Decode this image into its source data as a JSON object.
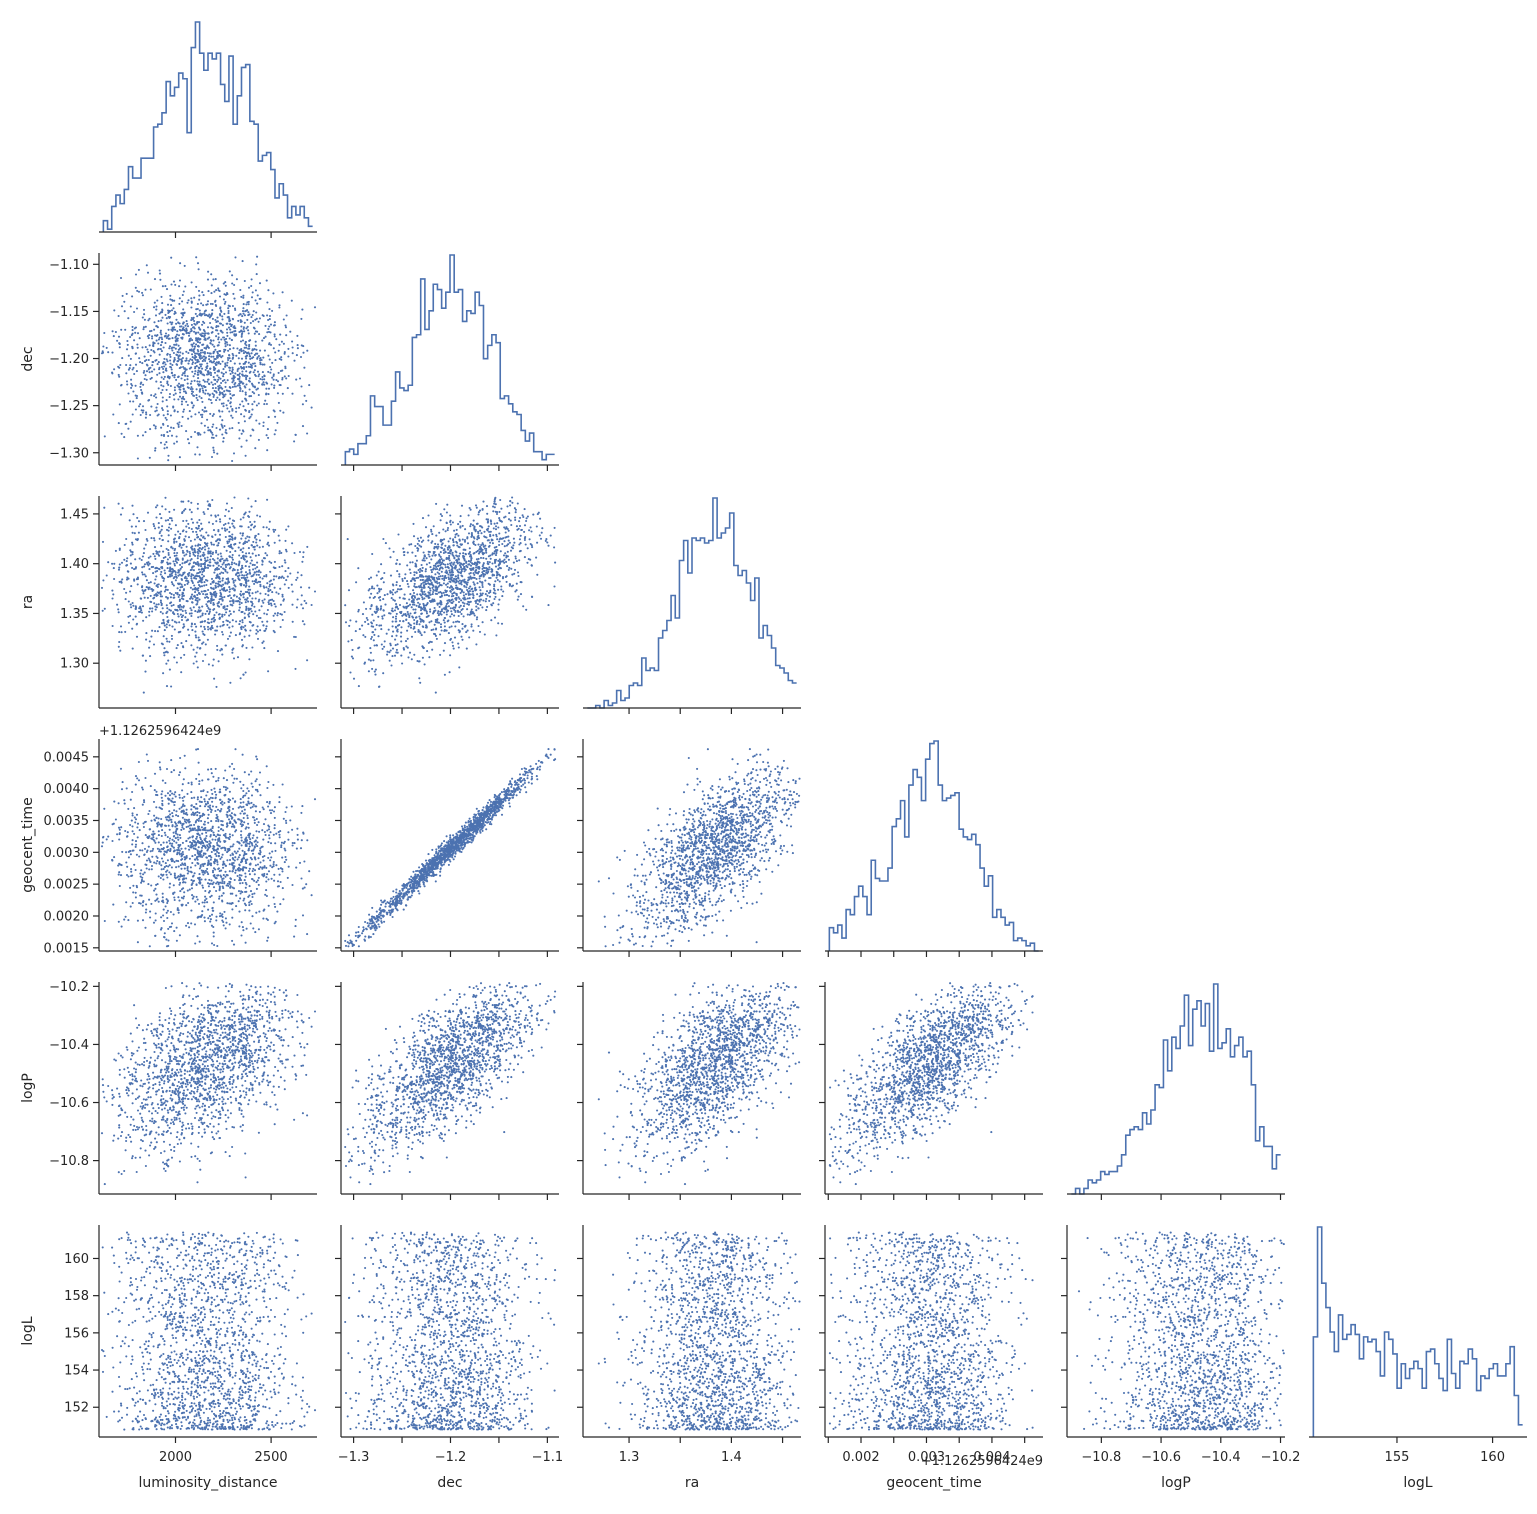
{
  "chart_data": {
    "type": "corner",
    "description_kind": "pairwise scatter matrix (lower triangle) with 1D step histograms on the diagonal",
    "colors": {
      "marks": "#4c72b0",
      "axes": "#262626"
    },
    "parameters": [
      {
        "name": "luminosity_distance",
        "label": "luminosity_distance",
        "range": [
          1600,
          2740
        ],
        "ticks": [
          2000,
          2500
        ],
        "tick_labels": [
          "2000",
          "2500"
        ],
        "mean": 2160,
        "std": 240
      },
      {
        "name": "dec",
        "label": "dec",
        "range": [
          -1.313,
          -1.088
        ],
        "ticks": [
          -1.3,
          -1.25,
          -1.2,
          -1.15,
          -1.1
        ],
        "tick_labels_x": [
          "−1.3",
          "",
          "−1.2",
          "",
          "−1.1"
        ],
        "tick_labels_y": [
          "−1.30",
          "−1.25",
          "−1.20",
          "−1.15",
          "−1.10"
        ],
        "mean": -1.2,
        "std": 0.045
      },
      {
        "name": "ra",
        "label": "ra",
        "range": [
          1.255,
          1.468
        ],
        "ticks": [
          1.3,
          1.35,
          1.4,
          1.45
        ],
        "tick_labels_x": [
          "1.3",
          "",
          "1.4",
          ""
        ],
        "tick_labels_y": [
          "1.30",
          "1.35",
          "1.40",
          "1.45"
        ],
        "mean": 1.383,
        "std": 0.04
      },
      {
        "name": "geocent_time",
        "label": "geocent_time",
        "range": [
          0.00145,
          0.00478
        ],
        "ticks": [
          0.0015,
          0.002,
          0.0025,
          0.003,
          0.0035,
          0.004,
          0.0045
        ],
        "tick_labels_x": [
          "",
          "0.002",
          "",
          "0.003",
          "",
          "0.004",
          ""
        ],
        "tick_labels_y": [
          "0.0015",
          "0.0020",
          "0.0025",
          "0.0030",
          "0.0035",
          "0.0040",
          "0.0045"
        ],
        "offset_text": "+1.126259642​4e9",
        "mean": 0.00305,
        "std": 0.00062
      },
      {
        "name": "logP",
        "label": "logP",
        "range": [
          -10.915,
          -10.185
        ],
        "ticks": [
          -10.8,
          -10.6,
          -10.4,
          -10.2
        ],
        "tick_labels": [
          "−10.8",
          "−10.6",
          "−10.4",
          "−10.2"
        ],
        "mean": -10.47,
        "std": 0.15
      },
      {
        "name": "logL",
        "label": "logL",
        "range": [
          150.4,
          161.8
        ],
        "ticks": [
          152,
          154,
          156,
          158,
          160
        ],
        "tick_labels_y": [
          "152",
          "154",
          "156",
          "158",
          "160"
        ],
        "ticks_x": [
          155,
          160
        ],
        "tick_labels_x": [
          "155",
          "160"
        ],
        "min": 150.8,
        "max": 161.4
      }
    ],
    "offset_label_texts": {
      "top": "+1.1262596424e9",
      "bottom": "+1.1262596424e9"
    },
    "sample_count": 1800,
    "correlations": {
      "dec|geocent_time": 0.98,
      "dec|ra": 0.62,
      "ra|geocent_time": 0.62,
      "luminosity_distance|logP": 0.55,
      "dec|logP": 0.68,
      "ra|logP": 0.5,
      "geocent_time|logP": 0.62
    },
    "histogram_bins": 50,
    "grid": false,
    "legend": "none"
  }
}
